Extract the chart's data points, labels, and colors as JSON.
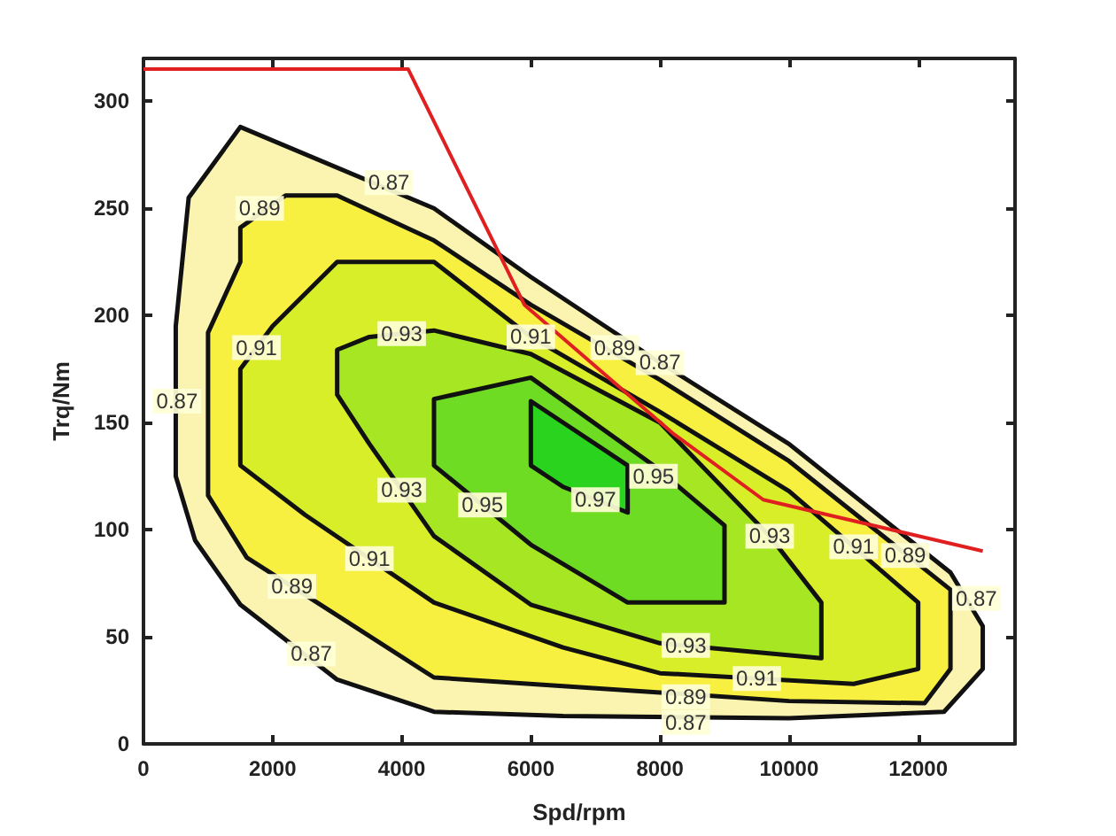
{
  "chart_data": {
    "type": "area",
    "xlabel": "Spd/rpm",
    "ylabel": "Trq/Nm",
    "xlim": [
      0,
      13500
    ],
    "ylim": [
      0,
      320
    ],
    "xticks": [
      0,
      2000,
      4000,
      6000,
      8000,
      10000,
      12000
    ],
    "yticks": [
      0,
      50,
      100,
      150,
      200,
      250,
      300
    ],
    "grid": false,
    "marker": "none",
    "series": [
      {
        "color": "#fbf4b0",
        "x": [
          1500,
          4500,
          6000,
          8000,
          10000,
          12500,
          13000,
          13000,
          12400,
          10000,
          6500,
          4500,
          3000,
          1500,
          800,
          500,
          500,
          700
        ],
        "values": [
          288,
          250,
          218,
          178,
          140,
          80,
          55,
          35,
          15,
          12,
          13,
          15,
          30,
          65,
          95,
          125,
          195,
          255
        ]
      },
      {
        "color": "#f8f040",
        "x": [
          2200,
          3000,
          4500,
          6000,
          8000,
          10000,
          12500,
          12500,
          12100,
          10000,
          8000,
          6500,
          4500,
          3000,
          1600,
          1000,
          1000,
          1500,
          1500
        ],
        "values": [
          256,
          256,
          235,
          205,
          170,
          132,
          72,
          35,
          19,
          20,
          24,
          27,
          31,
          60,
          87,
          116,
          192,
          225,
          241
        ]
      },
      {
        "color": "#d8ee28",
        "x": [
          3000,
          4500,
          6000,
          8000,
          10000,
          12000,
          12000,
          11000,
          8000,
          6500,
          4500,
          2500,
          1500,
          1500,
          2000
        ],
        "values": [
          225,
          225,
          190,
          155,
          118,
          66,
          35,
          28,
          33,
          45,
          66,
          107,
          130,
          175,
          195
        ]
      },
      {
        "color": "#a6e622",
        "x": [
          3500,
          4500,
          6000,
          8000,
          9700,
          10500,
          10500,
          8000,
          6000,
          4500,
          3500,
          3000,
          3000
        ],
        "values": [
          190,
          193,
          182,
          150,
          97,
          66,
          40,
          47,
          65,
          97,
          140,
          163,
          184
        ]
      },
      {
        "color": "#6edc22",
        "x": [
          4500,
          6000,
          7900,
          9000,
          9000,
          7500,
          6000,
          4500
        ],
        "values": [
          161,
          171,
          130,
          102,
          66,
          66,
          93,
          130
        ]
      },
      {
        "color": "#2ad41e",
        "x": [
          6000,
          7500,
          7500,
          6500,
          6000
        ],
        "values": [
          160,
          130,
          108,
          120,
          130
        ]
      },
      {
        "type": "line",
        "color": "#e02020",
        "x": [
          0,
          4100,
          5900,
          8200,
          9600,
          13000
        ],
        "values": [
          315,
          315,
          205,
          145,
          114,
          90
        ]
      }
    ],
    "annotations": [
      {
        "text": "0.87",
        "x": 3800,
        "y": 262
      },
      {
        "text": "0.87",
        "x": 520,
        "y": 160
      },
      {
        "text": "0.87",
        "x": 2600,
        "y": 42
      },
      {
        "text": "0.87",
        "x": 8000,
        "y": 178
      },
      {
        "text": "0.87",
        "x": 8400,
        "y": 10
      },
      {
        "text": "0.87",
        "x": 12900,
        "y": 68
      },
      {
        "text": "0.89",
        "x": 1800,
        "y": 250
      },
      {
        "text": "0.89",
        "x": 2300,
        "y": 73.5
      },
      {
        "text": "0.89",
        "x": 7300,
        "y": 185
      },
      {
        "text": "0.89",
        "x": 8400,
        "y": 22
      },
      {
        "text": "0.89",
        "x": 11800,
        "y": 88
      },
      {
        "text": "0.91",
        "x": 1750,
        "y": 185
      },
      {
        "text": "0.91",
        "x": 3500,
        "y": 86.5
      },
      {
        "text": "0.91",
        "x": 6000,
        "y": 190
      },
      {
        "text": "0.91",
        "x": 9500,
        "y": 30.5
      },
      {
        "text": "0.91",
        "x": 11000,
        "y": 92
      },
      {
        "text": "0.93",
        "x": 4000,
        "y": 191.5
      },
      {
        "text": "0.93",
        "x": 4000,
        "y": 118.5
      },
      {
        "text": "0.93",
        "x": 9700,
        "y": 97
      },
      {
        "text": "0.93",
        "x": 8400,
        "y": 46
      },
      {
        "text": "0.95",
        "x": 7900,
        "y": 125
      },
      {
        "text": "0.95",
        "x": 5250,
        "y": 111.5
      },
      {
        "text": "0.97",
        "x": 7000,
        "y": 114
      }
    ]
  }
}
